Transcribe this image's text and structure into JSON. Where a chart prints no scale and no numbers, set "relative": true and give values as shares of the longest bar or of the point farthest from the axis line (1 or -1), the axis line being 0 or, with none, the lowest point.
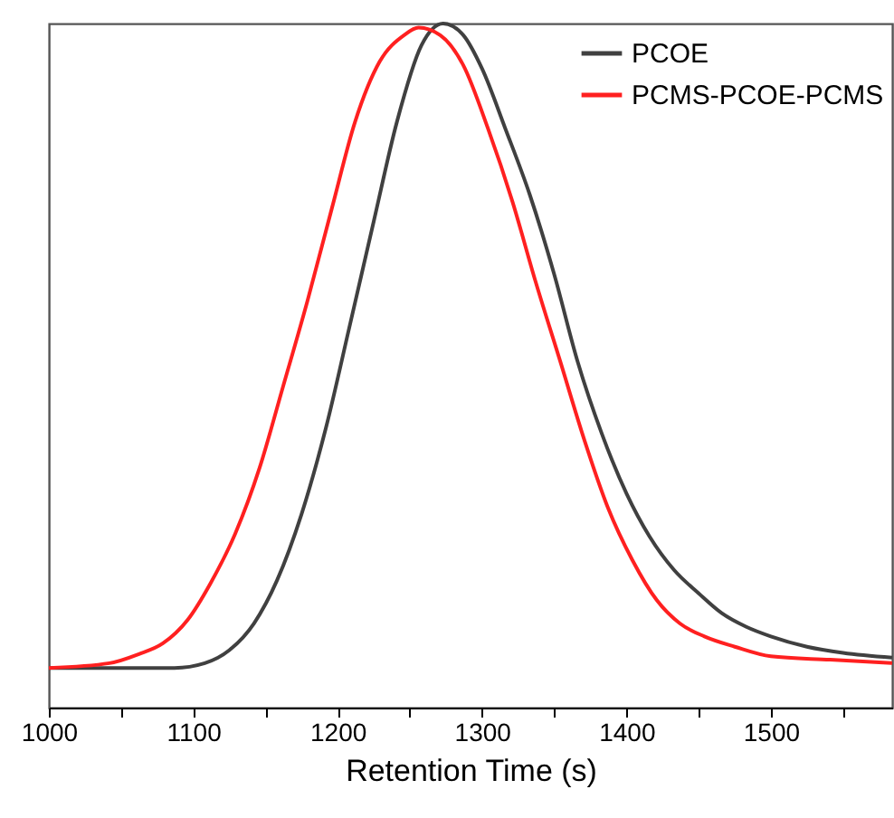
{
  "chart_data": {
    "type": "line",
    "relative": true,
    "xlabel": "Retention Time (s)",
    "xlim": [
      1000,
      1584
    ],
    "xticks": [
      1000,
      {
        "value": 1050,
        "label": null
      },
      1100,
      {
        "value": 1150,
        "label": null
      },
      1200,
      {
        "value": 1250,
        "label": null
      },
      1300,
      {
        "value": 1350,
        "label": null
      },
      1400,
      {
        "value": 1450,
        "label": null
      },
      1500,
      {
        "value": 1550,
        "label": null
      }
    ],
    "grid": false,
    "legend": "top right",
    "line_style": "solid",
    "marker": "none",
    "tick_labels": "x",
    "series": [
      {
        "name": "PCOE",
        "color": "#404040",
        "x": [
          1000,
          1087,
          1108,
          1125,
          1142,
          1158,
          1175,
          1192,
          1208,
          1225,
          1241,
          1258,
          1273,
          1287,
          1300,
          1316,
          1333,
          1350,
          1366,
          1383,
          1400,
          1416,
          1433,
          1450,
          1466,
          1483,
          1500,
          1525,
          1550,
          1584
        ],
        "values": [
          0.058,
          0.058,
          0.065,
          0.084,
          0.123,
          0.186,
          0.283,
          0.41,
          0.555,
          0.711,
          0.856,
          0.968,
          1.0,
          0.983,
          0.934,
          0.847,
          0.75,
          0.633,
          0.507,
          0.4,
          0.313,
          0.25,
          0.201,
          0.167,
          0.138,
          0.118,
          0.104,
          0.089,
          0.08,
          0.073
        ]
      },
      {
        "name": "PCMS-PCOE-PCMS",
        "color": "#ff2020",
        "x": [
          1000,
          1042,
          1062,
          1079,
          1096,
          1112,
          1129,
          1146,
          1162,
          1179,
          1196,
          1212,
          1229,
          1246,
          1256,
          1271,
          1287,
          1304,
          1321,
          1337,
          1354,
          1371,
          1387,
          1404,
          1421,
          1437,
          1454,
          1475,
          1500,
          1541,
          1584
        ],
        "values": [
          0.058,
          0.065,
          0.078,
          0.094,
          0.128,
          0.182,
          0.254,
          0.351,
          0.468,
          0.594,
          0.73,
          0.856,
          0.944,
          0.983,
          0.994,
          0.983,
          0.939,
          0.847,
          0.74,
          0.623,
          0.507,
          0.39,
          0.293,
          0.216,
          0.157,
          0.123,
          0.104,
          0.089,
          0.075,
          0.07,
          0.065
        ]
      }
    ]
  }
}
